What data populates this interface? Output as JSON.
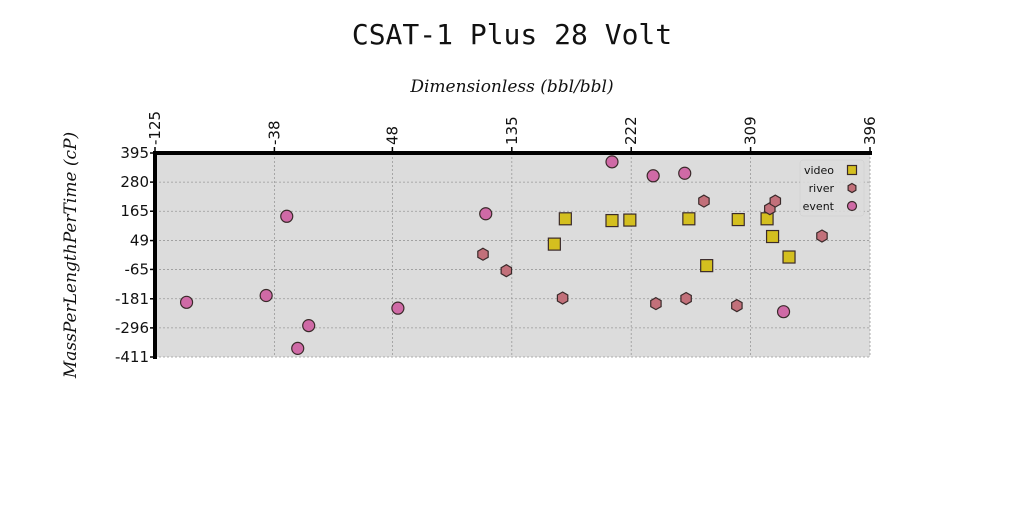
{
  "chart_data": {
    "type": "scatter",
    "title": "CSAT-1 Plus 28 Volt",
    "xlabel": "Dimensionless (bbl/bbl)",
    "ylabel": "MassPerLengthPerTime (cP)",
    "xlim": [
      -125,
      396
    ],
    "ylim": [
      -411,
      395
    ],
    "x_ticks": [
      "-125",
      "-38",
      "48",
      "135",
      "222",
      "309",
      "396"
    ],
    "y_ticks": [
      "395",
      "280",
      "165",
      "49",
      "-65",
      "-181",
      "-296",
      "-411"
    ],
    "x_tick_values": [
      -125,
      -38,
      48,
      135,
      222,
      309,
      396
    ],
    "y_tick_values": [
      395,
      280,
      165,
      49,
      -65,
      -181,
      -296,
      -411
    ],
    "grid": true,
    "legend_position": "top-right",
    "colors": {
      "video": "#d4bf1f",
      "river": "#c2707a",
      "event": "#cf6aa6",
      "plot_bg": "#dcdcdc",
      "grid": "#999999",
      "axis": "#000000"
    },
    "series": [
      {
        "name": "video",
        "marker": "square",
        "points": [
          {
            "x": 166,
            "y": 35
          },
          {
            "x": 174,
            "y": 135
          },
          {
            "x": 208,
            "y": 128
          },
          {
            "x": 221,
            "y": 130
          },
          {
            "x": 264,
            "y": 135
          },
          {
            "x": 277,
            "y": -50
          },
          {
            "x": 300,
            "y": 132
          },
          {
            "x": 321,
            "y": 135
          },
          {
            "x": 325,
            "y": 65
          },
          {
            "x": 337,
            "y": -16
          }
        ]
      },
      {
        "name": "river",
        "marker": "hexagon",
        "points": [
          {
            "x": 114,
            "y": -5
          },
          {
            "x": 131,
            "y": -70
          },
          {
            "x": 172,
            "y": -178
          },
          {
            "x": 240,
            "y": -200
          },
          {
            "x": 262,
            "y": -180
          },
          {
            "x": 275,
            "y": 205
          },
          {
            "x": 299,
            "y": -208
          },
          {
            "x": 323,
            "y": 175
          },
          {
            "x": 327,
            "y": 205
          },
          {
            "x": 361,
            "y": 67
          }
        ]
      },
      {
        "name": "event",
        "marker": "circle",
        "points": [
          {
            "x": -102,
            "y": -195
          },
          {
            "x": -44,
            "y": -168
          },
          {
            "x": -29,
            "y": 145
          },
          {
            "x": -21,
            "y": -377
          },
          {
            "x": -13,
            "y": -287
          },
          {
            "x": 52,
            "y": -218
          },
          {
            "x": 116,
            "y": 155
          },
          {
            "x": 208,
            "y": 360
          },
          {
            "x": 238,
            "y": 305
          },
          {
            "x": 261,
            "y": 315
          },
          {
            "x": 333,
            "y": -232
          }
        ]
      }
    ]
  }
}
